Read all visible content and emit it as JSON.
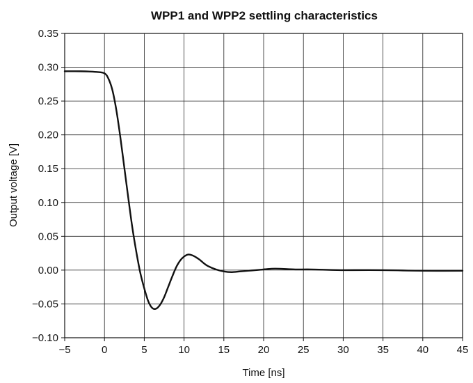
{
  "chart_data": {
    "type": "line",
    "title": "WPP1 and WPP2 settling characteristics",
    "xlabel": "Time [ns]",
    "ylabel": "Output voltage [V]",
    "xlim": [
      -5,
      45
    ],
    "ylim": [
      -0.1,
      0.35
    ],
    "grid": true,
    "x_ticks": [
      -5,
      0,
      5,
      10,
      15,
      20,
      25,
      30,
      35,
      40,
      45
    ],
    "x_tick_labels": [
      "−5",
      "0",
      "5",
      "10",
      "15",
      "20",
      "25",
      "30",
      "35",
      "40",
      "45"
    ],
    "y_ticks": [
      -0.1,
      -0.05,
      0.0,
      0.05,
      0.1,
      0.15,
      0.2,
      0.25,
      0.3,
      0.35
    ],
    "y_tick_labels": [
      "−0.10",
      "−0.05",
      "0.00",
      "0.05",
      "0.10",
      "0.15",
      "0.20",
      "0.25",
      "0.30",
      "0.35"
    ],
    "series": [
      {
        "color": "#111111",
        "x": [
          -5,
          -3,
          -1,
          0,
          0.5,
          1,
          1.5,
          2,
          2.5,
          3,
          3.5,
          4,
          4.5,
          5,
          5.5,
          6,
          6.5,
          7,
          7.5,
          8,
          8.5,
          9,
          9.5,
          10,
          10.5,
          11,
          11.5,
          12,
          12.5,
          13,
          14,
          15,
          16,
          17,
          18,
          19,
          20,
          21,
          22,
          24,
          26,
          30,
          35,
          40,
          45
        ],
        "y": [
          0.294,
          0.294,
          0.293,
          0.291,
          0.283,
          0.266,
          0.236,
          0.196,
          0.151,
          0.106,
          0.063,
          0.027,
          -0.004,
          -0.027,
          -0.046,
          -0.056,
          -0.057,
          -0.051,
          -0.04,
          -0.025,
          -0.01,
          0.004,
          0.014,
          0.02,
          0.023,
          0.022,
          0.019,
          0.015,
          0.01,
          0.006,
          0.001,
          -0.002,
          -0.003,
          -0.002,
          -0.001,
          0.0,
          0.001,
          0.002,
          0.002,
          0.001,
          0.001,
          0.0,
          0.0,
          -0.001,
          -0.001
        ]
      }
    ]
  }
}
